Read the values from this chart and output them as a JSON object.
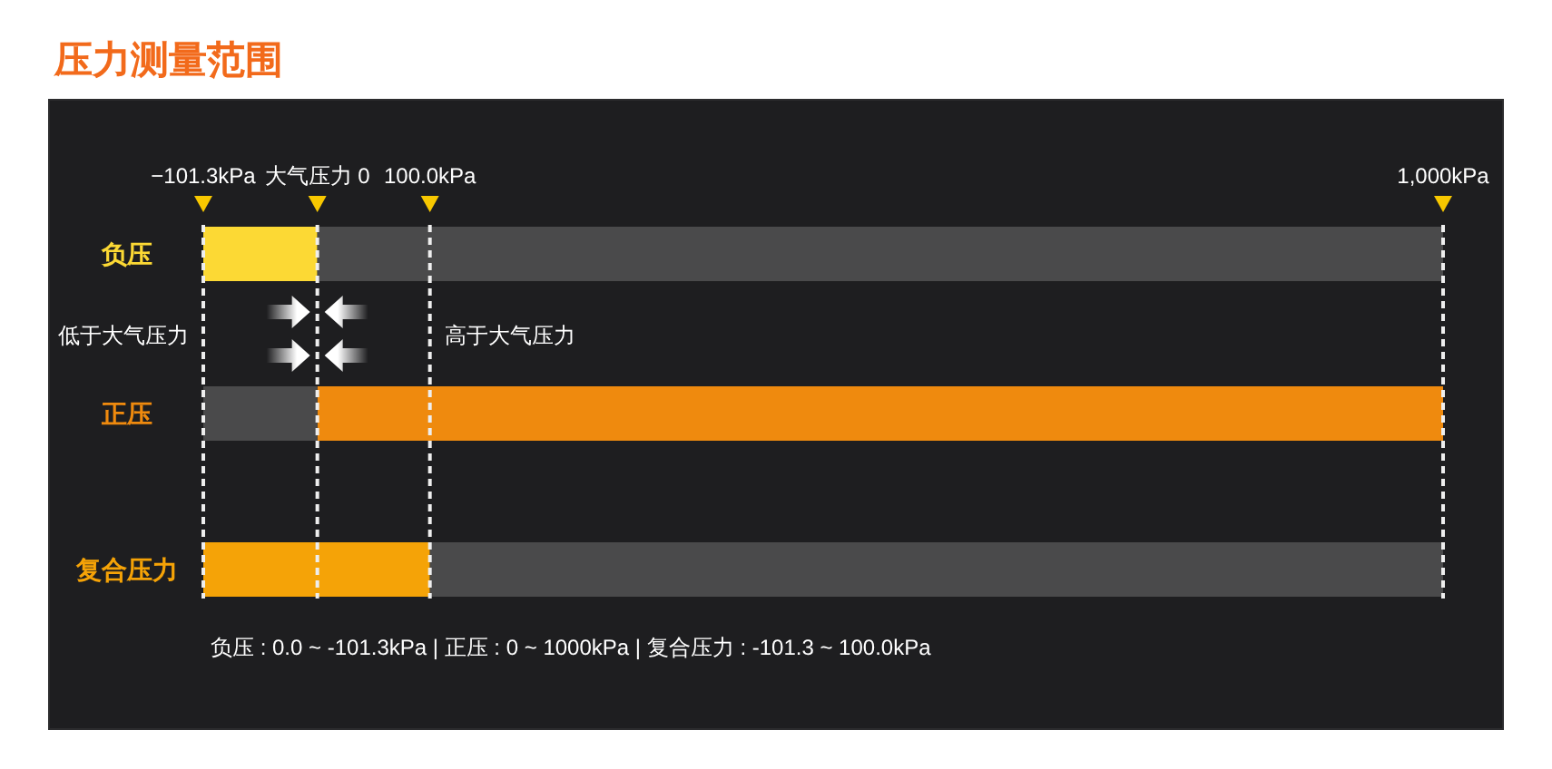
{
  "chart_data": {
    "type": "bar",
    "title": "压力测量范围",
    "orientation": "horizontal",
    "categories": [
      "负压",
      "正压",
      "复合压力"
    ],
    "series": [
      {
        "colors": [
          "#fcd934",
          "#ef8a0e",
          "#f5a307"
        ],
        "base": [
          -101.3,
          0,
          -101.3
        ],
        "values": [
          101.3,
          1000,
          201.3
        ]
      },
      {
        "color": "#4a4a4b",
        "base": [
          0,
          -101.3,
          100
        ],
        "values": [
          1000,
          101.3,
          900
        ]
      }
    ],
    "xlim": [
      -101.3,
      1000
    ],
    "xticks": [
      {
        "value": -101.3,
        "label": "−101.3kPa"
      },
      {
        "value": 0,
        "label": "大气压力 0"
      },
      {
        "value": 100,
        "label": "100.0kPa"
      },
      {
        "value": 1000,
        "label": "1,000kPa"
      }
    ],
    "grid": "x",
    "annotations": [
      "低于大气压力",
      "高于大气压力",
      "负压 : 0.0 ~ -101.3kPa | 正压 : 0 ~ 1000kPa | 复合压力 : -101.3 ~ 100.0kPa"
    ]
  }
}
